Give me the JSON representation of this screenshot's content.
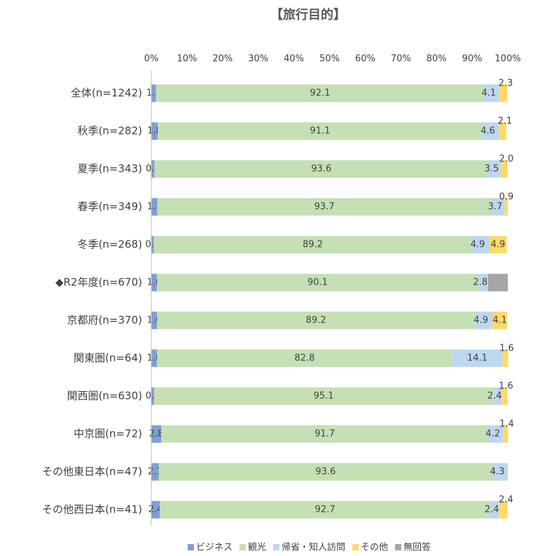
{
  "chart_data": {
    "type": "stacked_barh",
    "title": "【旅行目的】",
    "categories": [
      "全体(n=1242)",
      "秋季(n=282)",
      "夏季(n=343)",
      "春季(n=349)",
      "冬季(n=268)",
      "◆R2年度(n=670)",
      "京都府(n=370)",
      "関東圏(n=64)",
      "関西圏(n=630)",
      "中京圏(n=72)",
      "その他東日本(n=47)",
      "その他西日本(n=41)"
    ],
    "series": [
      {
        "name": "ビジネス",
        "color": "#7f9fd4",
        "values": [
          1.3,
          1.8,
          0.9,
          1.7,
          0.7,
          1.6,
          1.6,
          1.6,
          0.8,
          2.8,
          2.1,
          2.4
        ]
      },
      {
        "name": "観光",
        "color": "#c5e0b4",
        "values": [
          92.1,
          91.1,
          93.6,
          93.7,
          89.2,
          90.1,
          89.2,
          82.8,
          95.1,
          91.7,
          93.6,
          92.7
        ]
      },
      {
        "name": "帰省・知人訪問",
        "color": "#bdd7ee",
        "values": [
          4.1,
          4.6,
          3.5,
          3.7,
          4.9,
          2.8,
          4.9,
          14.1,
          2.4,
          4.2,
          4.3,
          2.4
        ]
      },
      {
        "name": "その他",
        "color": "#ffd966",
        "values": [
          2.3,
          2.1,
          2.0,
          0.9,
          4.9,
          0,
          4.1,
          1.6,
          1.6,
          1.4,
          0,
          2.4
        ],
        "value_labels": [
          "2.3",
          "2.1",
          "2.0",
          "0.9",
          "4.9",
          null,
          "4.1",
          "1.6",
          "1.6",
          "1.4",
          null,
          "2.4"
        ]
      },
      {
        "name": "無回答",
        "color": "#a6a6a6",
        "values": [
          0,
          0,
          0,
          0,
          0,
          5.5,
          0,
          0,
          0,
          0,
          0,
          0
        ],
        "value_labels": [
          null,
          null,
          null,
          null,
          null,
          null,
          null,
          null,
          null,
          null,
          null,
          null
        ]
      }
    ],
    "xlim": [
      0,
      100
    ],
    "xticks": [
      {
        "value": 0,
        "label": "0%"
      },
      {
        "value": 10,
        "label": "10%"
      },
      {
        "value": 20,
        "label": "20%"
      },
      {
        "value": 30,
        "label": "30%"
      },
      {
        "value": 40,
        "label": "40%"
      },
      {
        "value": 50,
        "label": "50%"
      },
      {
        "value": 60,
        "label": "60%"
      },
      {
        "value": 70,
        "label": "70%"
      },
      {
        "value": 80,
        "label": "80%"
      },
      {
        "value": 90,
        "label": "90%"
      },
      {
        "value": 100,
        "label": "100%"
      }
    ],
    "legend": "bottom"
  }
}
